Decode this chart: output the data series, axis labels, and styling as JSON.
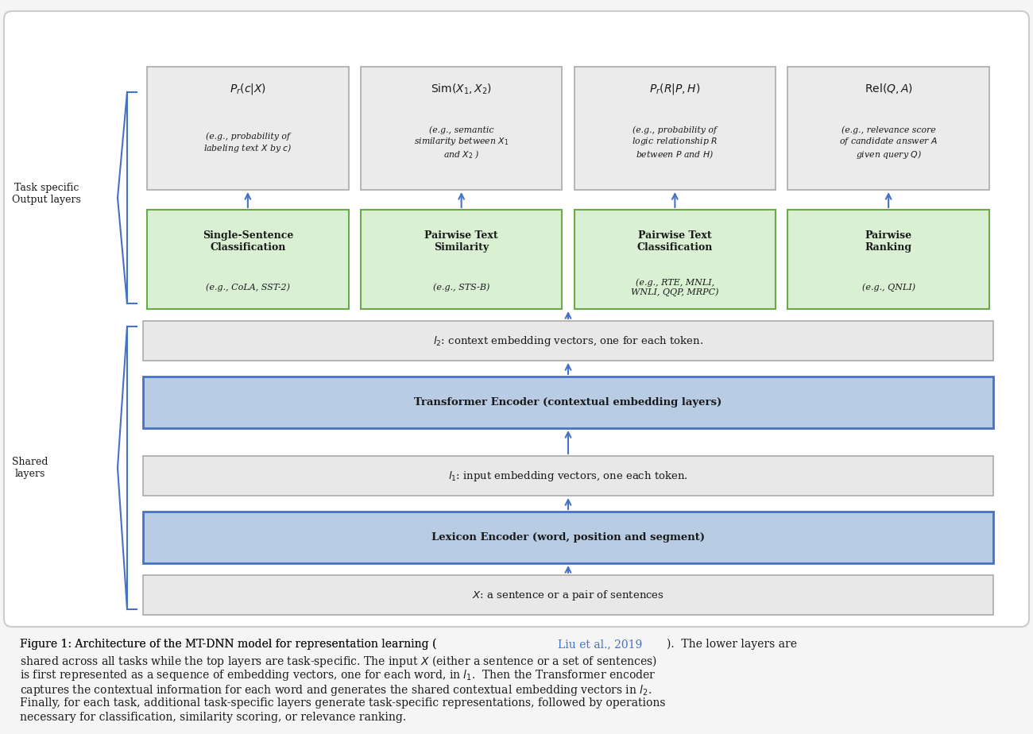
{
  "bg_color": "#f0f0f0",
  "fig_bg": "#f0f0f0",
  "box_bg_gray": "#e8e8e8",
  "box_bg_green": "#d9f0d3",
  "box_bg_blue": "#b8cce4",
  "box_border_gray": "#aaaaaa",
  "box_border_green": "#6aaa4a",
  "box_border_blue": "#4472c4",
  "arrow_color": "#4472c4",
  "brace_color": "#4472c4",
  "text_color": "#1a1a1a",
  "caption_link_color": "#4472c4",
  "top_boxes": [
    {
      "title": "$P_r(c|X)$",
      "desc": "(e.g., probability of\nlabeling text $X$ by $c$)"
    },
    {
      "title": "$\\mathrm{Sim}(X_1, X_2)$",
      "desc": "(e.g., semantic\nsimilarity between $X_1$\nand $X_2$ )"
    },
    {
      "title": "$P_r(R|P, H)$",
      "desc": "(e.g., probability of\nlogic relationship $R$\nbetween $P$ and $H$)"
    },
    {
      "title": "$\\mathrm{Rel}(Q, A)$",
      "desc": "(e.g., relevance score\nof candidate answer $A$\ngiven query $Q$)"
    }
  ],
  "task_boxes": [
    {
      "title": "Single-Sentence\nClassification",
      "desc": "(e.g., CoLA, SST-2)"
    },
    {
      "title": "Pairwise Text\nSimilarity",
      "desc": "(e.g., STS-B)"
    },
    {
      "title": "Pairwise Text\nClassification",
      "desc": "(e.g., RTE, MNLI,\nWNLI, QQP, MRPC)"
    },
    {
      "title": "Pairwise\nRanking",
      "desc": "(e.g., QNLI)"
    }
  ],
  "shared_boxes": [
    {
      "label": "$l_2$: context embedding vectors, one for each token.",
      "style": "gray"
    },
    {
      "label": "Transformer Encoder (contextual embedding layers)",
      "style": "blue"
    },
    {
      "label": "$l_1$: input embedding vectors, one each token.",
      "style": "gray"
    },
    {
      "label": "Lexicon Encoder (word, position and segment)",
      "style": "blue"
    },
    {
      "label": "$X$: a sentence or a pair of sentences",
      "style": "gray"
    }
  ],
  "caption_line1": "Figure 1: Architecture of the MT-DNN model for representation learning (Liu et al., 2019).  The lower layers are",
  "caption_line2": "shared across all tasks while the top layers are task-specific. The input $X$ (either a sentence or a set of sentences)",
  "caption_line3": "is first represented as a sequence of embedding vectors, one for each word, in $l_1$.  Then the Transformer encoder",
  "caption_line4": "captures the contextual information for each word and generates the shared contextual embedding vectors in $l_2$.",
  "caption_line5": "Finally, for each task, additional task-specific layers generate task-specific representations, followed by operations",
  "caption_line6": "necessary for classification, similarity scoring, or relevance ranking."
}
